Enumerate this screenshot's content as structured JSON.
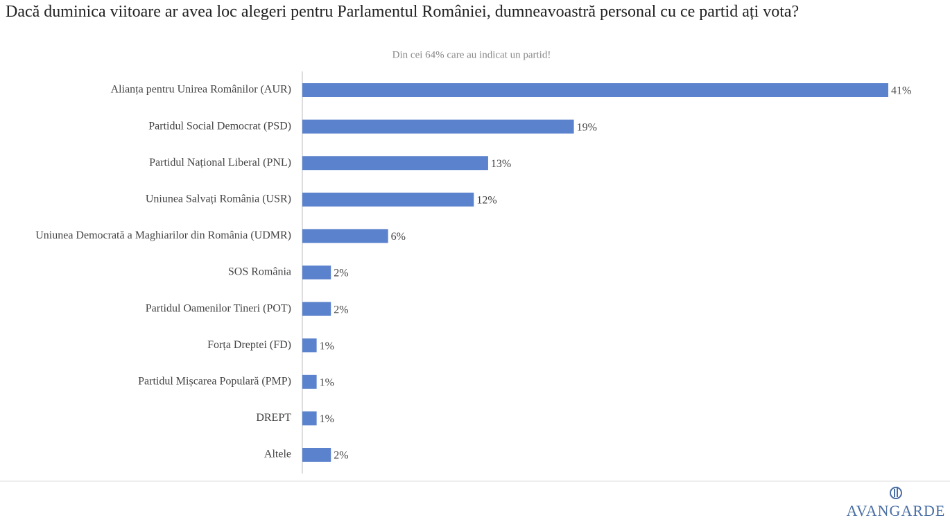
{
  "chart_data": {
    "type": "bar",
    "orientation": "horizontal",
    "title": "Dacă duminica viitoare ar avea loc alegeri pentru Parlamentul României, dumneavoastră personal cu ce partid ați vota?",
    "subtitle": "Din cei 64% care au indicat un partid!",
    "categories": [
      "Alianța pentru Unirea Românilor (AUR)",
      "Partidul Social Democrat (PSD)",
      "Partidul Național Liberal (PNL)",
      "Uniunea Salvați România (USR)",
      "Uniunea Democrată a Maghiarilor din România (UDMR)",
      "SOS România",
      "Partidul Oamenilor Tineri (POT)",
      "Forța Dreptei (FD)",
      "Partidul Mișcarea Populară (PMP)",
      "DREPT",
      "Altele"
    ],
    "values": [
      41,
      19,
      13,
      12,
      6,
      2,
      2,
      1,
      1,
      1,
      2
    ],
    "value_labels": [
      "41%",
      "19%",
      "13%",
      "12%",
      "6%",
      "2%",
      "2%",
      "1%",
      "1%",
      "1%",
      "2%"
    ],
    "color": "#5b82cc",
    "logo": "AVANGARDE"
  }
}
